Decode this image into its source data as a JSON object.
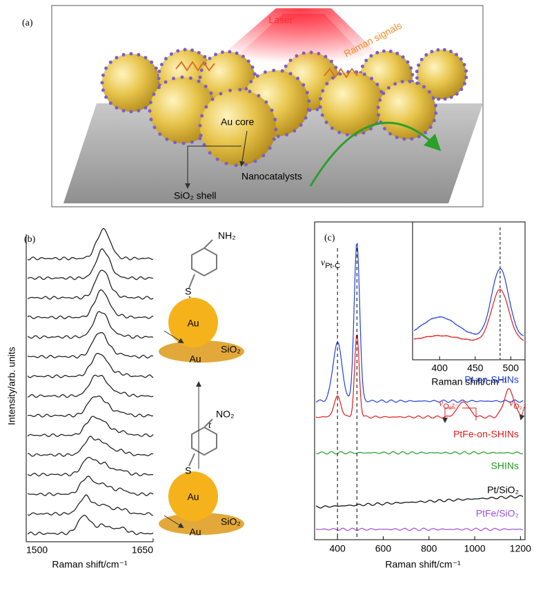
{
  "illustration": {
    "label": "(a)",
    "laser": "Laser",
    "raman": "Raman signals",
    "core": "Au core",
    "catalysts": "Nanocatalysts",
    "shell": "SiO₂ shell"
  },
  "chart_data": [
    {
      "type": "line",
      "label": "(b)",
      "xlabel": "Raman shift/cm⁻¹",
      "ylabel": "Intensity/arb. units",
      "xlim": [
        1500,
        1650
      ],
      "xticks": [
        1500,
        1650
      ],
      "annotations": {
        "top_group": "NH₂",
        "top_s": "S",
        "top_au": "Au",
        "top_sub": "Au",
        "top_sio2": "SiO₂",
        "time": "t",
        "bot_group": "NO₂",
        "bot_s": "S",
        "bot_au": "Au",
        "bot_sub": "Au",
        "bot_sio2": "SiO₂"
      }
    },
    {
      "type": "line",
      "label": "(c)",
      "xlabel": "Raman shift/cm⁻¹",
      "xlim": [
        300,
        1220
      ],
      "xticks": [
        400,
        600,
        800,
        1000,
        1200
      ],
      "reference_lines": [
        400,
        485
      ],
      "series": [
        {
          "name": "Pt-on-SHINs",
          "color": "#1f3fe0"
        },
        {
          "name": "PtFe-on-SHINs",
          "color": "#e01b1b"
        },
        {
          "name": "SHINs",
          "color": "#1f9a1f"
        },
        {
          "name": "Pt/SiO₂",
          "color": "#000000"
        },
        {
          "name": "PtFe/SiO₂",
          "color": "#9b4de0"
        }
      ],
      "annotations": {
        "pt_c": {
          "symbol": "ν",
          "sub": "Pt-C"
        },
        "peroxo": {
          "symbol": "ν",
          "sub": "O₂²⁻"
        },
        "superoxo": {
          "symbol": "ν",
          "sub": "O₂⁻"
        }
      }
    },
    {
      "type": "line",
      "xlabel": "Raman shift/cm⁻¹",
      "xlim": [
        362,
        520
      ],
      "xticks": [
        400,
        450,
        500
      ],
      "reference_lines": [
        485
      ]
    }
  ]
}
